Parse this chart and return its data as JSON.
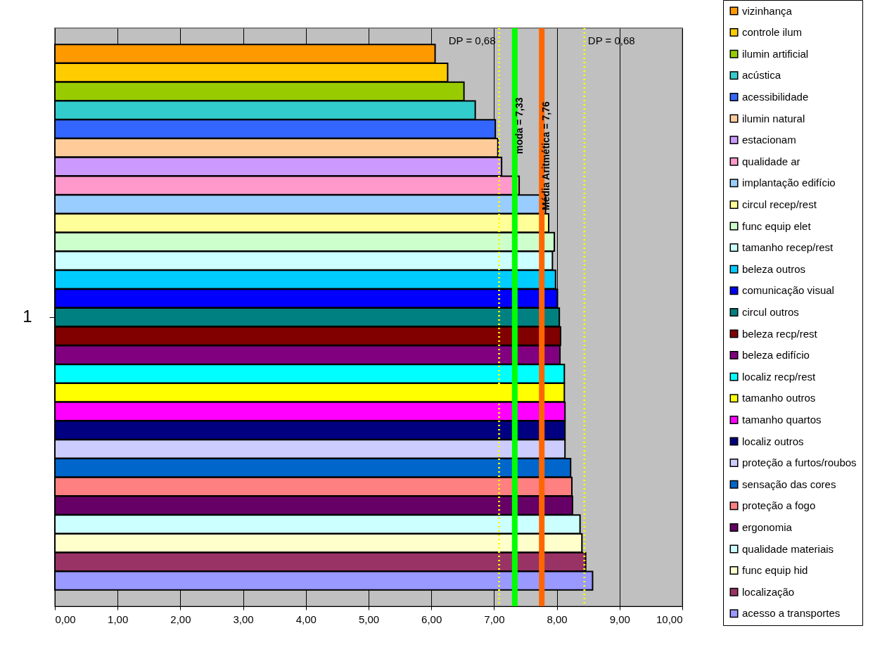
{
  "chart_data": {
    "type": "bar",
    "orientation": "horizontal",
    "categories": [
      "1"
    ],
    "series": [
      {
        "name": "vizinhança",
        "color": "#ff9900",
        "values": [
          6.06
        ]
      },
      {
        "name": "controle ilum",
        "color": "#ffcc00",
        "values": [
          6.26
        ]
      },
      {
        "name": "ilumin artificial",
        "color": "#99cc00",
        "values": [
          6.52
        ]
      },
      {
        "name": "acústica",
        "color": "#33cccc",
        "values": [
          6.7
        ]
      },
      {
        "name": "acessibilidade",
        "color": "#3366ff",
        "values": [
          7.02
        ]
      },
      {
        "name": "ilumin natural",
        "color": "#ffcc99",
        "values": [
          7.06
        ]
      },
      {
        "name": "estacionam",
        "color": "#cc99ff",
        "values": [
          7.12
        ]
      },
      {
        "name": "qualidade ar",
        "color": "#ff99cc",
        "values": [
          7.4
        ]
      },
      {
        "name": "implantação edifício",
        "color": "#99ccff",
        "values": [
          7.82
        ]
      },
      {
        "name": "circul recep/rest",
        "color": "#ffff99",
        "values": [
          7.87
        ]
      },
      {
        "name": "func equip elet",
        "color": "#ccffcc",
        "values": [
          7.96
        ]
      },
      {
        "name": "tamanho recep/rest",
        "color": "#ccffff",
        "values": [
          7.93
        ]
      },
      {
        "name": "beleza outros",
        "color": "#00ccff",
        "values": [
          7.98
        ]
      },
      {
        "name": "comunicação visual",
        "color": "#0000ff",
        "values": [
          8.01
        ]
      },
      {
        "name": "circul outros",
        "color": "#008080",
        "values": [
          8.04
        ]
      },
      {
        "name": "beleza recp/rest",
        "color": "#800000",
        "values": [
          8.06
        ]
      },
      {
        "name": "beleza edifício",
        "color": "#800080",
        "values": [
          8.05
        ]
      },
      {
        "name": "localiz recp/rest",
        "color": "#00ffff",
        "values": [
          8.12
        ]
      },
      {
        "name": "tamanho outros",
        "color": "#ffff00",
        "values": [
          8.12
        ]
      },
      {
        "name": "tamanho quartos",
        "color": "#ff00ff",
        "values": [
          8.13
        ]
      },
      {
        "name": "localiz outros",
        "color": "#000080",
        "values": [
          8.13
        ]
      },
      {
        "name": "proteção a furtos/roubos",
        "color": "#ccccff",
        "values": [
          8.13
        ]
      },
      {
        "name": "sensação das cores",
        "color": "#0066cc",
        "values": [
          8.22
        ]
      },
      {
        "name": "proteção a fogo",
        "color": "#ff8080",
        "values": [
          8.24
        ]
      },
      {
        "name": "ergonomia",
        "color": "#660066",
        "values": [
          8.25
        ]
      },
      {
        "name": "qualidade materiais",
        "color": "#ccffff",
        "values": [
          8.37
        ]
      },
      {
        "name": "func equip hid",
        "color": "#ffffcc",
        "values": [
          8.4
        ]
      },
      {
        "name": "localização",
        "color": "#993366",
        "values": [
          8.46
        ]
      },
      {
        "name": "acesso a transportes",
        "color": "#9999ff",
        "values": [
          8.57
        ]
      }
    ],
    "xlim": [
      0,
      10
    ],
    "xticks": [
      {
        "value": 0,
        "label": "0,00"
      },
      {
        "value": 1,
        "label": "1,00"
      },
      {
        "value": 2,
        "label": "2,00"
      },
      {
        "value": 3,
        "label": "3,00"
      },
      {
        "value": 4,
        "label": "4,00"
      },
      {
        "value": 5,
        "label": "5,00"
      },
      {
        "value": 6,
        "label": "6,00"
      },
      {
        "value": 7,
        "label": "7,00"
      },
      {
        "value": 8,
        "label": "8,00"
      },
      {
        "value": 9,
        "label": "9,00"
      },
      {
        "value": 10,
        "label": "10,00"
      }
    ],
    "ref_lines": [
      {
        "axis": "x",
        "value": 7.08,
        "color": "#ffff00",
        "line_style": "dotted"
      },
      {
        "axis": "x",
        "value": 7.33,
        "label": "moda = 7,33",
        "color": "#00ff00",
        "line_style": "solid"
      },
      {
        "axis": "x",
        "value": 7.76,
        "label": "Média Aritmética = 7,76",
        "color": "#ff6600",
        "line_style": "solid"
      },
      {
        "axis": "x",
        "value": 8.44,
        "color": "#ffff00",
        "line_style": "dotted"
      }
    ],
    "annotations": [
      {
        "text": "DP = 0,68",
        "x": 7.08
      },
      {
        "text": "DP = 0,68",
        "x": 8.44
      }
    ],
    "grid": "x",
    "legend": "right"
  }
}
